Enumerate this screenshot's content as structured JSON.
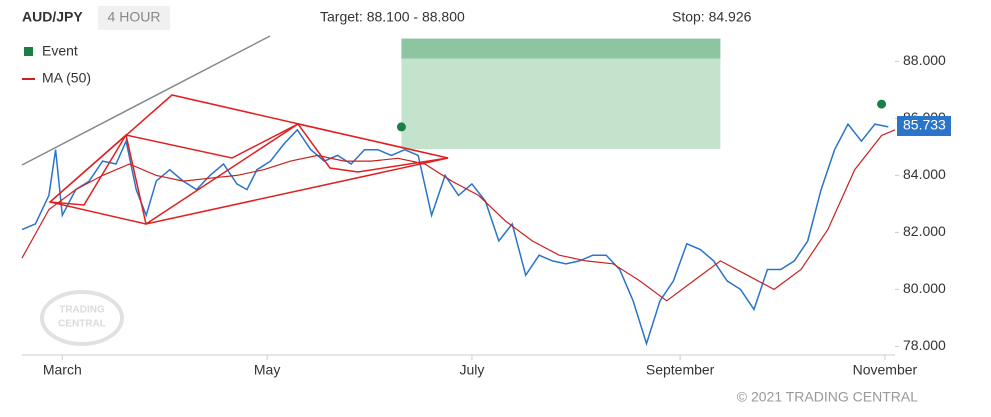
{
  "chart_data": {
    "type": "line",
    "title": "AUD/JPY",
    "period": "4 HOUR",
    "target_text": "Target: 88.100 - 88.800",
    "stop_text": "Stop: 84.926",
    "footer": "© 2021 TRADING CENTRAL",
    "watermark": [
      "TRADING",
      "CENTRAL"
    ],
    "xlim": [
      0,
      260
    ],
    "xticks": [
      {
        "value": 12,
        "label": "March"
      },
      {
        "value": 73,
        "label": "May"
      },
      {
        "value": 134,
        "label": "July"
      },
      {
        "value": 196,
        "label": "September"
      },
      {
        "value": 257,
        "label": "November"
      }
    ],
    "ylim": [
      77.7,
      89.1
    ],
    "yticks": [
      {
        "value": 78,
        "label": "78.000"
      },
      {
        "value": 80,
        "label": "80.000"
      },
      {
        "value": 82,
        "label": "82.000"
      },
      {
        "value": 84,
        "label": "84.000"
      },
      {
        "value": 86,
        "label": "86.000"
      },
      {
        "value": 88,
        "label": "88.000"
      }
    ],
    "price": {
      "color": "#2a74c9",
      "x": [
        0,
        4,
        8,
        10,
        12,
        16,
        20,
        24,
        28,
        31,
        34,
        37,
        40,
        44,
        48,
        52,
        56,
        60,
        64,
        67,
        70,
        74,
        78,
        82,
        86,
        90,
        94,
        98,
        102,
        106,
        110,
        114,
        118,
        122,
        126,
        130,
        134,
        138,
        142,
        146,
        150,
        154,
        158,
        162,
        166,
        170,
        174,
        178,
        182,
        186,
        190,
        194,
        198,
        202,
        206,
        210,
        214,
        218,
        222,
        226,
        230,
        234,
        238,
        242,
        246,
        250,
        254,
        258
      ],
      "values": [
        82.1,
        82.3,
        83.3,
        84.9,
        82.6,
        83.5,
        83.8,
        84.5,
        84.4,
        85.2,
        83.5,
        82.6,
        83.8,
        84.2,
        83.8,
        83.5,
        84.0,
        84.4,
        83.7,
        83.5,
        84.2,
        84.5,
        85.1,
        85.6,
        84.9,
        84.5,
        84.7,
        84.4,
        84.9,
        84.9,
        84.7,
        84.9,
        84.7,
        82.6,
        84.0,
        83.3,
        83.7,
        83.1,
        81.7,
        82.3,
        80.5,
        81.2,
        81.0,
        80.9,
        81.0,
        81.2,
        81.2,
        80.7,
        79.6,
        78.1,
        79.6,
        80.3,
        81.6,
        81.4,
        81.0,
        80.3,
        80.0,
        79.3,
        80.7,
        80.7,
        81.0,
        81.7,
        83.5,
        84.9,
        85.8,
        85.2,
        85.8,
        85.7
      ]
    },
    "last_price": 85.733,
    "ma": {
      "name": "MA (50)",
      "color": "#c8211e",
      "x": [
        0,
        8,
        16,
        24,
        32,
        40,
        48,
        56,
        64,
        72,
        80,
        88,
        96,
        104,
        112,
        120,
        128,
        136,
        144,
        152,
        160,
        168,
        176,
        184,
        192,
        200,
        208,
        216,
        224,
        232,
        240,
        248,
        256,
        260
      ],
      "values": [
        81.1,
        82.8,
        83.5,
        84.0,
        84.4,
        84.0,
        83.8,
        83.9,
        84.0,
        84.2,
        84.5,
        84.7,
        84.5,
        84.5,
        84.6,
        84.4,
        83.8,
        83.3,
        82.4,
        81.7,
        81.2,
        81.0,
        80.9,
        80.3,
        79.6,
        80.3,
        81.0,
        80.5,
        80.0,
        80.7,
        82.1,
        84.2,
        85.4,
        85.6
      ]
    },
    "events": {
      "name": "Event",
      "color": "#1a7f45",
      "x": [
        113,
        256
      ],
      "values": [
        85.7,
        86.5
      ]
    },
    "target_zone": {
      "x": [
        113,
        208
      ],
      "stop": 84.926,
      "target_low": 88.1,
      "target_high": 88.8
    }
  }
}
